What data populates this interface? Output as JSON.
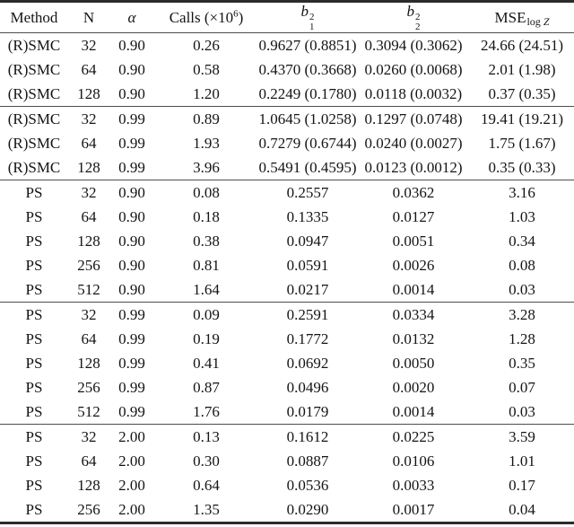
{
  "table": {
    "headers": {
      "method": "Method",
      "n": "N",
      "alpha": "α",
      "calls_prefix": "Calls (×10",
      "calls_sup": "6",
      "calls_suffix": ")",
      "b_base": "b",
      "b_sup": "2",
      "b1_sub": "1",
      "b2_sub": "2",
      "mse_base": "MSE",
      "mse_sub_log": "log",
      "mse_sub_z": "Z"
    },
    "groups": [
      {
        "rows": [
          [
            "(R)SMC",
            "32",
            "0.90",
            "0.26",
            "0.9627 (0.8851)",
            "0.3094 (0.3062)",
            "24.66 (24.51)"
          ],
          [
            "(R)SMC",
            "64",
            "0.90",
            "0.58",
            "0.4370 (0.3668)",
            "0.0260 (0.0068)",
            "2.01 (1.98)"
          ],
          [
            "(R)SMC",
            "128",
            "0.90",
            "1.20",
            "0.2249 (0.1780)",
            "0.0118 (0.0032)",
            "0.37 (0.35)"
          ]
        ]
      },
      {
        "rows": [
          [
            "(R)SMC",
            "32",
            "0.99",
            "0.89",
            "1.0645 (1.0258)",
            "0.1297 (0.0748)",
            "19.41 (19.21)"
          ],
          [
            "(R)SMC",
            "64",
            "0.99",
            "1.93",
            "0.7279 (0.6744)",
            "0.0240 (0.0027)",
            "1.75 (1.67)"
          ],
          [
            "(R)SMC",
            "128",
            "0.99",
            "3.96",
            "0.5491 (0.4595)",
            "0.0123 (0.0012)",
            "0.35 (0.33)"
          ]
        ]
      },
      {
        "rows": [
          [
            "PS",
            "32",
            "0.90",
            "0.08",
            "0.2557",
            "0.0362",
            "3.16"
          ],
          [
            "PS",
            "64",
            "0.90",
            "0.18",
            "0.1335",
            "0.0127",
            "1.03"
          ],
          [
            "PS",
            "128",
            "0.90",
            "0.38",
            "0.0947",
            "0.0051",
            "0.34"
          ],
          [
            "PS",
            "256",
            "0.90",
            "0.81",
            "0.0591",
            "0.0026",
            "0.08"
          ],
          [
            "PS",
            "512",
            "0.90",
            "1.64",
            "0.0217",
            "0.0014",
            "0.03"
          ]
        ]
      },
      {
        "rows": [
          [
            "PS",
            "32",
            "0.99",
            "0.09",
            "0.2591",
            "0.0334",
            "3.28"
          ],
          [
            "PS",
            "64",
            "0.99",
            "0.19",
            "0.1772",
            "0.0132",
            "1.28"
          ],
          [
            "PS",
            "128",
            "0.99",
            "0.41",
            "0.0692",
            "0.0050",
            "0.35"
          ],
          [
            "PS",
            "256",
            "0.99",
            "0.87",
            "0.0496",
            "0.0020",
            "0.07"
          ],
          [
            "PS",
            "512",
            "0.99",
            "1.76",
            "0.0179",
            "0.0014",
            "0.03"
          ]
        ]
      },
      {
        "rows": [
          [
            "PS",
            "32",
            "2.00",
            "0.13",
            "0.1612",
            "0.0225",
            "3.59"
          ],
          [
            "PS",
            "64",
            "2.00",
            "0.30",
            "0.0887",
            "0.0106",
            "1.01"
          ],
          [
            "PS",
            "128",
            "2.00",
            "0.64",
            "0.0536",
            "0.0033",
            "0.17"
          ],
          [
            "PS",
            "256",
            "2.00",
            "1.35",
            "0.0290",
            "0.0017",
            "0.04"
          ]
        ]
      }
    ]
  }
}
